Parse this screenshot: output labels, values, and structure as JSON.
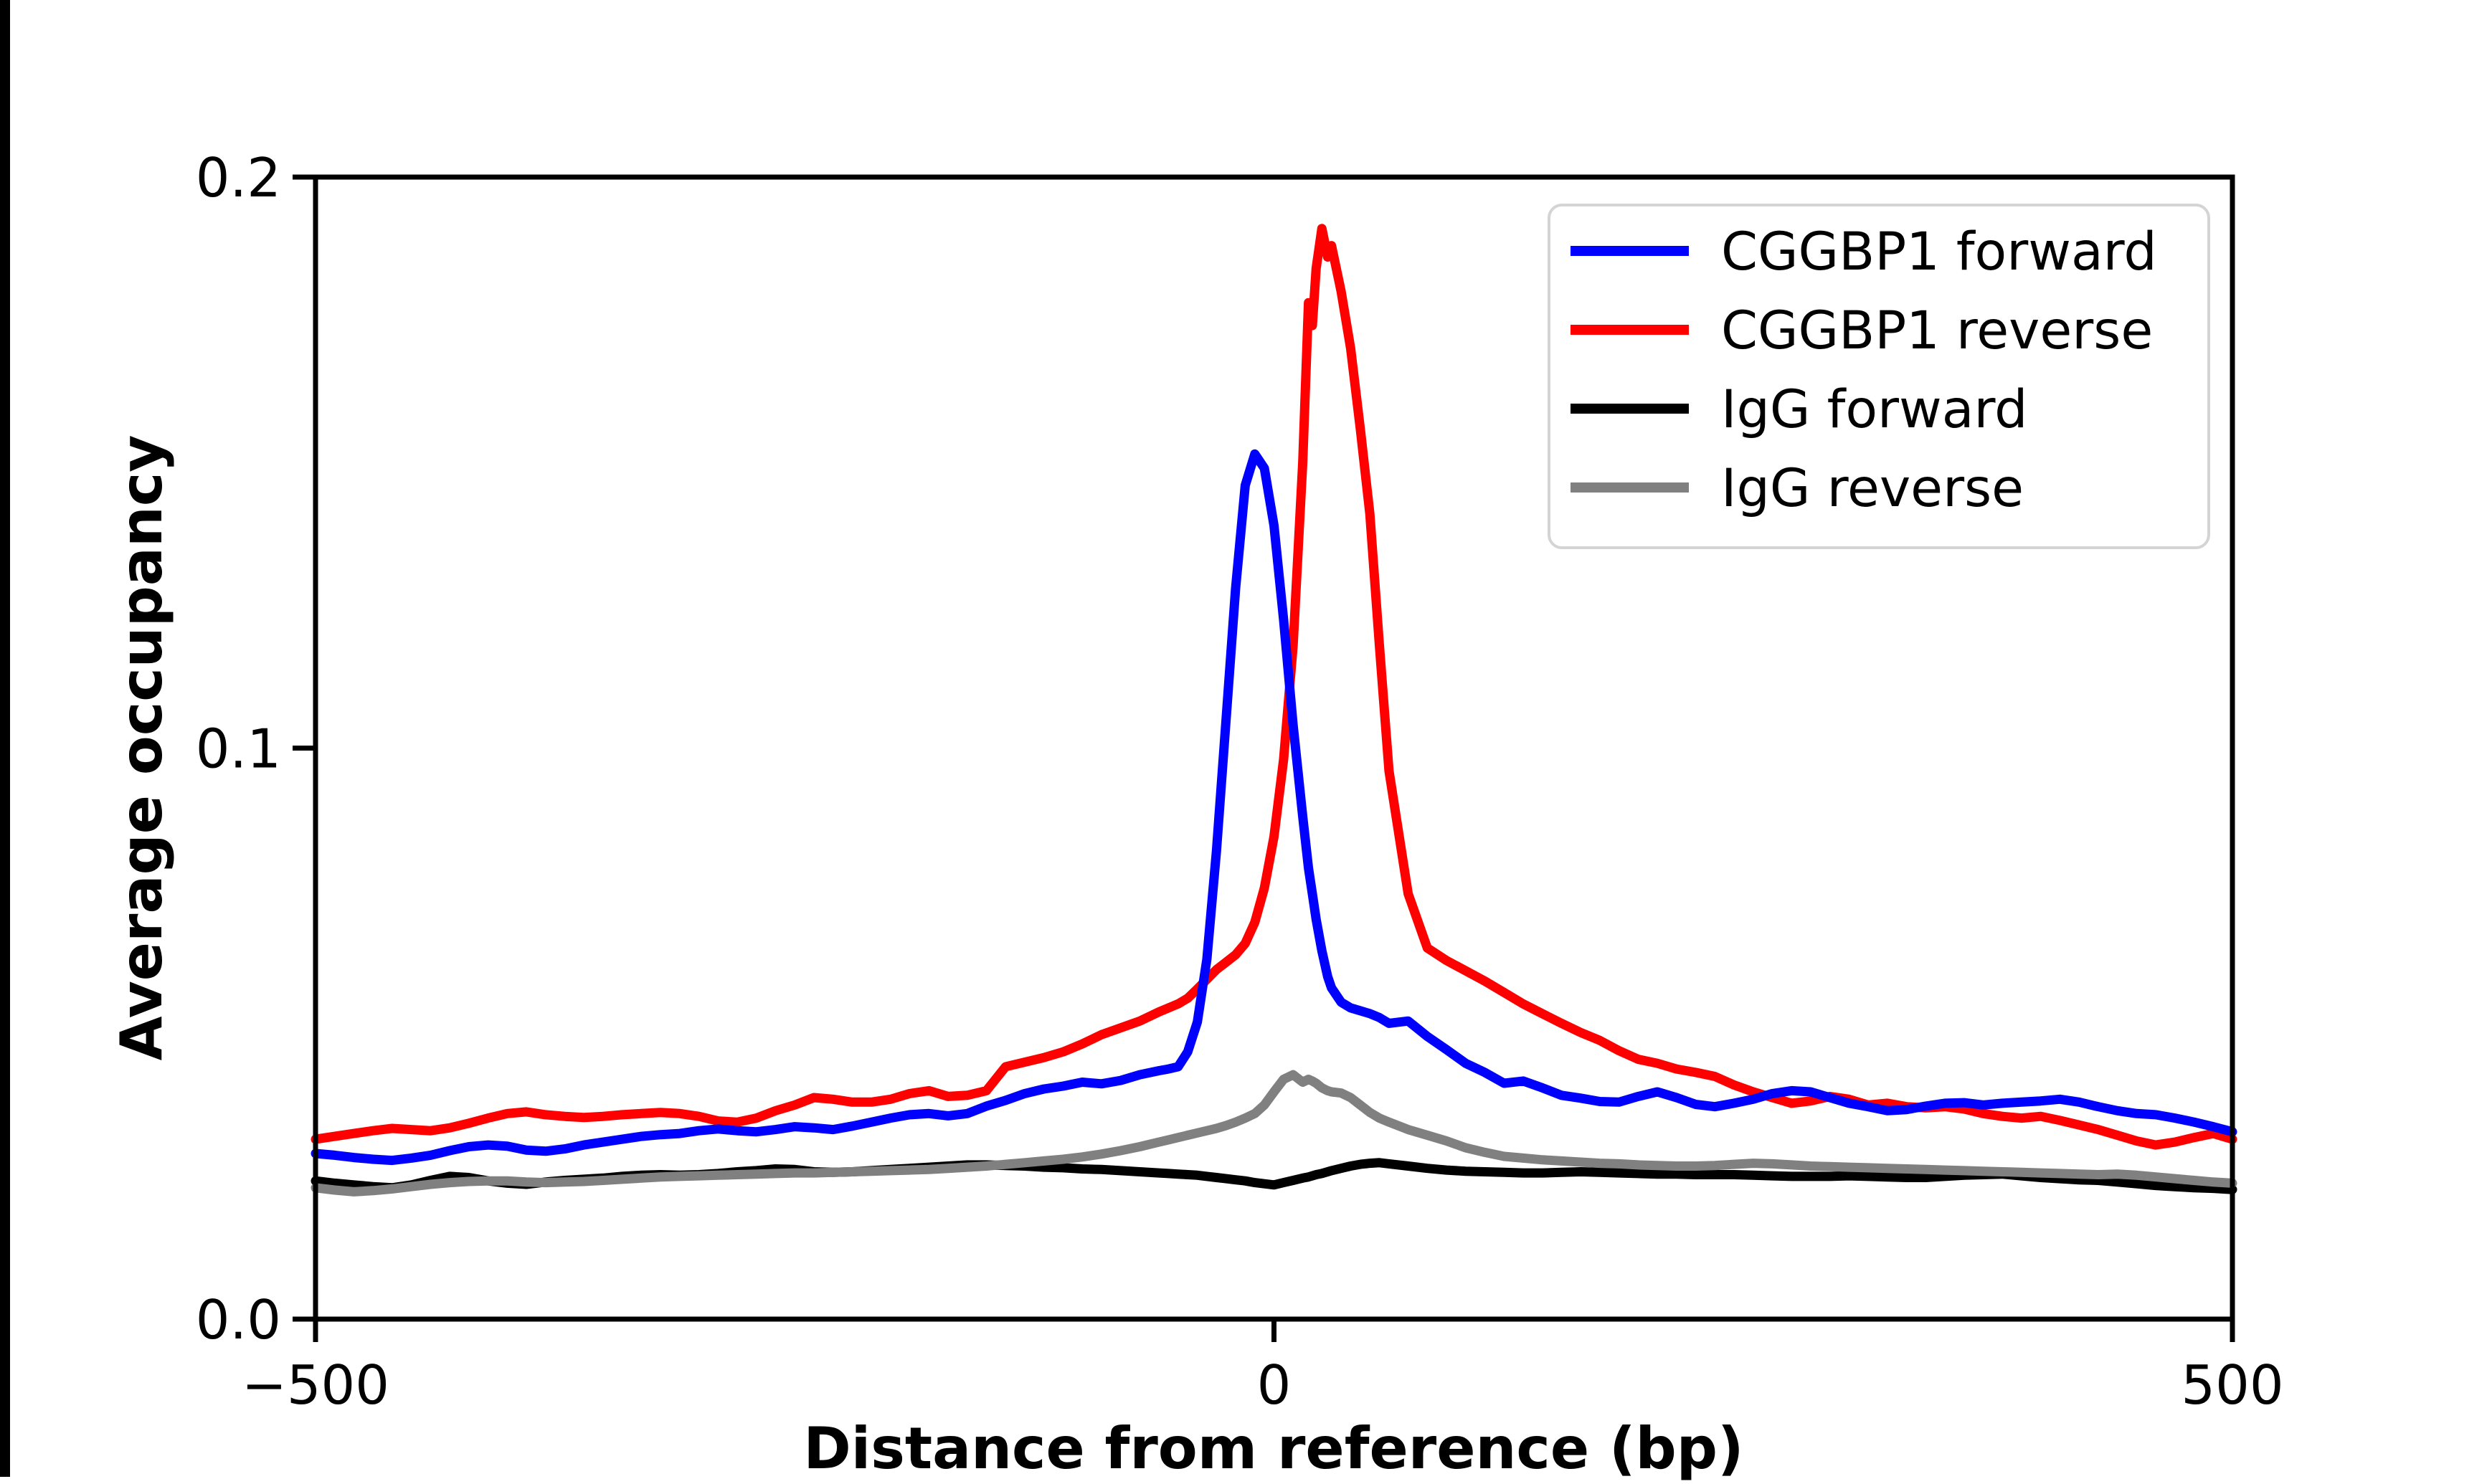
{
  "figure": {
    "background_color": "#ffffff",
    "left_edge_bar_color": "#000000",
    "spine_color": "#000000",
    "legend_frame_color": "#d4d4d4",
    "legend_background_color": "#ffffff"
  },
  "chart_data": {
    "type": "line",
    "title": "",
    "xlabel": "Distance from reference (bp)",
    "ylabel": "Average occupancy",
    "xlim": [
      -500,
      500
    ],
    "ylim": [
      0,
      0.2
    ],
    "grid": false,
    "legend_position": "upper right",
    "xticks": {
      "values": [
        -500,
        0,
        500
      ],
      "labels": [
        "−500",
        "0",
        "500"
      ]
    },
    "yticks": {
      "values": [
        0,
        0.1,
        0.2
      ],
      "labels": [
        "0.0",
        "0.1",
        "0.2"
      ]
    },
    "x": [
      -500,
      -490,
      -480,
      -470,
      -460,
      -450,
      -440,
      -430,
      -420,
      -410,
      -400,
      -390,
      -380,
      -370,
      -360,
      -350,
      -340,
      -330,
      -320,
      -310,
      -300,
      -290,
      -280,
      -270,
      -260,
      -250,
      -240,
      -230,
      -220,
      -210,
      -200,
      -190,
      -180,
      -170,
      -160,
      -150,
      -140,
      -130,
      -120,
      -110,
      -100,
      -90,
      -80,
      -70,
      -60,
      -55,
      -50,
      -45,
      -40,
      -35,
      -30,
      -25,
      -20,
      -15,
      -10,
      -5,
      0,
      5,
      10,
      15,
      18,
      20,
      22,
      25,
      28,
      30,
      35,
      40,
      45,
      50,
      55,
      60,
      70,
      80,
      90,
      100,
      110,
      120,
      130,
      140,
      150,
      160,
      170,
      180,
      190,
      200,
      210,
      220,
      230,
      240,
      250,
      260,
      270,
      280,
      290,
      300,
      310,
      320,
      330,
      340,
      350,
      360,
      370,
      380,
      390,
      400,
      410,
      420,
      430,
      440,
      450,
      460,
      470,
      480,
      490,
      500
    ],
    "series": [
      {
        "name": "CGGBP1 forward",
        "color": "#0000ff",
        "values": [
          0.029,
          0.0287,
          0.0283,
          0.028,
          0.0278,
          0.0282,
          0.0287,
          0.0295,
          0.0302,
          0.0305,
          0.0303,
          0.0296,
          0.0294,
          0.0298,
          0.0305,
          0.031,
          0.0315,
          0.032,
          0.0323,
          0.0325,
          0.033,
          0.0333,
          0.033,
          0.0328,
          0.0332,
          0.0337,
          0.0335,
          0.0332,
          0.0338,
          0.0345,
          0.0352,
          0.0358,
          0.036,
          0.0356,
          0.036,
          0.0373,
          0.0383,
          0.0395,
          0.0403,
          0.0408,
          0.0415,
          0.0412,
          0.0418,
          0.0428,
          0.0435,
          0.0438,
          0.0442,
          0.0468,
          0.052,
          0.063,
          0.082,
          0.105,
          0.128,
          0.146,
          0.1515,
          0.149,
          0.139,
          0.1225,
          0.104,
          0.088,
          0.079,
          0.0745,
          0.07,
          0.0645,
          0.06,
          0.058,
          0.0555,
          0.0545,
          0.054,
          0.0535,
          0.0528,
          0.0518,
          0.0522,
          0.0495,
          0.0472,
          0.0448,
          0.0432,
          0.0413,
          0.0417,
          0.0405,
          0.0392,
          0.0387,
          0.0381,
          0.038,
          0.039,
          0.0398,
          0.0388,
          0.0376,
          0.0372,
          0.0378,
          0.0385,
          0.0395,
          0.04,
          0.0398,
          0.0388,
          0.0378,
          0.0372,
          0.0365,
          0.0367,
          0.0373,
          0.0378,
          0.0379,
          0.0375,
          0.0378,
          0.038,
          0.0382,
          0.0385,
          0.038,
          0.0372,
          0.0365,
          0.036,
          0.0358,
          0.0352,
          0.0345,
          0.0337,
          0.0328
        ]
      },
      {
        "name": "CGGBP1 reverse",
        "color": "#ff0000",
        "values": [
          0.0315,
          0.032,
          0.0325,
          0.033,
          0.0334,
          0.0332,
          0.033,
          0.0335,
          0.0343,
          0.0352,
          0.036,
          0.0363,
          0.0358,
          0.0355,
          0.0353,
          0.0355,
          0.0358,
          0.036,
          0.0362,
          0.036,
          0.0355,
          0.0347,
          0.0345,
          0.0352,
          0.0365,
          0.0375,
          0.0388,
          0.0385,
          0.038,
          0.038,
          0.0385,
          0.0395,
          0.04,
          0.039,
          0.0392,
          0.04,
          0.0442,
          0.045,
          0.0458,
          0.0468,
          0.0482,
          0.0498,
          0.051,
          0.0522,
          0.0538,
          0.0545,
          0.0552,
          0.0562,
          0.0578,
          0.0595,
          0.0612,
          0.0625,
          0.0638,
          0.0658,
          0.0695,
          0.0755,
          0.0845,
          0.098,
          0.118,
          0.15,
          0.178,
          0.174,
          0.184,
          0.191,
          0.186,
          0.188,
          0.18,
          0.17,
          0.156,
          0.141,
          0.118,
          0.096,
          0.0745,
          0.065,
          0.0628,
          0.061,
          0.0592,
          0.0572,
          0.0552,
          0.0535,
          0.0518,
          0.0502,
          0.0488,
          0.047,
          0.0455,
          0.0448,
          0.0438,
          0.0432,
          0.0425,
          0.041,
          0.0398,
          0.0388,
          0.0378,
          0.0382,
          0.039,
          0.0385,
          0.0375,
          0.0378,
          0.0372,
          0.037,
          0.0372,
          0.0368,
          0.036,
          0.0355,
          0.0352,
          0.0355,
          0.0348,
          0.034,
          0.0332,
          0.0322,
          0.0312,
          0.0305,
          0.031,
          0.0318,
          0.0325,
          0.0315
        ]
      },
      {
        "name": "IgG forward",
        "color": "#000000",
        "values": [
          0.0242,
          0.0238,
          0.0235,
          0.0232,
          0.023,
          0.0235,
          0.0243,
          0.025,
          0.0248,
          0.0242,
          0.0238,
          0.0236,
          0.024,
          0.0243,
          0.0245,
          0.0247,
          0.025,
          0.0252,
          0.0253,
          0.0252,
          0.0253,
          0.0255,
          0.0258,
          0.026,
          0.0263,
          0.0262,
          0.0258,
          0.0257,
          0.0258,
          0.026,
          0.0262,
          0.0264,
          0.0266,
          0.0268,
          0.027,
          0.027,
          0.0269,
          0.0268,
          0.0266,
          0.0265,
          0.0263,
          0.0262,
          0.026,
          0.0258,
          0.0256,
          0.0255,
          0.0254,
          0.0253,
          0.0252,
          0.025,
          0.0248,
          0.0246,
          0.0244,
          0.0242,
          0.0239,
          0.0237,
          0.0235,
          0.0239,
          0.0243,
          0.0247,
          0.0249,
          0.0251,
          0.0253,
          0.0255,
          0.0258,
          0.026,
          0.0264,
          0.0268,
          0.0271,
          0.0273,
          0.0274,
          0.0272,
          0.0268,
          0.0264,
          0.0261,
          0.0259,
          0.0258,
          0.0257,
          0.0256,
          0.0256,
          0.0257,
          0.0258,
          0.0257,
          0.0256,
          0.0255,
          0.0254,
          0.0254,
          0.0253,
          0.0253,
          0.0253,
          0.0252,
          0.0251,
          0.025,
          0.025,
          0.025,
          0.0251,
          0.025,
          0.0249,
          0.0248,
          0.0248,
          0.025,
          0.0252,
          0.0253,
          0.0254,
          0.0251,
          0.0248,
          0.0246,
          0.0244,
          0.0243,
          0.024,
          0.0237,
          0.0234,
          0.0232,
          0.023,
          0.0229,
          0.0227
        ]
      },
      {
        "name": "IgG reverse",
        "color": "#808080",
        "values": [
          0.023,
          0.0226,
          0.0223,
          0.0225,
          0.0228,
          0.0232,
          0.0236,
          0.0239,
          0.0241,
          0.0242,
          0.0242,
          0.024,
          0.0239,
          0.024,
          0.0241,
          0.0243,
          0.0245,
          0.0247,
          0.0249,
          0.025,
          0.0251,
          0.0252,
          0.0253,
          0.0254,
          0.0255,
          0.0256,
          0.0256,
          0.0257,
          0.0258,
          0.0259,
          0.026,
          0.0261,
          0.0262,
          0.0264,
          0.0266,
          0.0268,
          0.0271,
          0.0274,
          0.0277,
          0.028,
          0.0284,
          0.0289,
          0.0295,
          0.0302,
          0.031,
          0.0314,
          0.0318,
          0.0322,
          0.0326,
          0.033,
          0.0334,
          0.0339,
          0.0345,
          0.0352,
          0.036,
          0.0375,
          0.0398,
          0.042,
          0.0428,
          0.0415,
          0.042,
          0.0417,
          0.0413,
          0.0405,
          0.04,
          0.0398,
          0.0396,
          0.0388,
          0.0375,
          0.0362,
          0.0352,
          0.0345,
          0.0332,
          0.0322,
          0.0312,
          0.03,
          0.0292,
          0.0285,
          0.0282,
          0.0279,
          0.0277,
          0.0275,
          0.0273,
          0.0272,
          0.027,
          0.0269,
          0.0268,
          0.0268,
          0.0269,
          0.0271,
          0.0273,
          0.0272,
          0.027,
          0.0268,
          0.0267,
          0.0266,
          0.0265,
          0.0264,
          0.0263,
          0.0262,
          0.0261,
          0.026,
          0.0259,
          0.0258,
          0.0257,
          0.0256,
          0.0255,
          0.0254,
          0.0253,
          0.0254,
          0.0252,
          0.0249,
          0.0246,
          0.0243,
          0.024,
          0.0238
        ]
      }
    ],
    "draw_order": [
      "IgG forward",
      "IgG reverse",
      "CGGBP1 reverse",
      "CGGBP1 forward"
    ]
  }
}
